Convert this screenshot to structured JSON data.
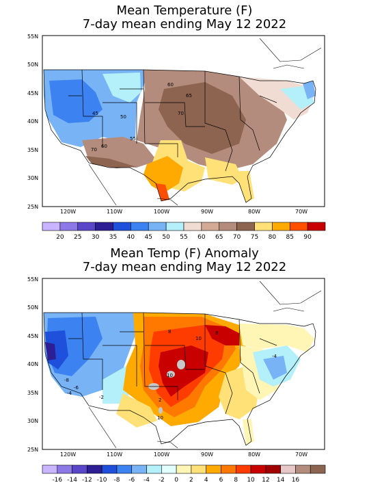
{
  "top_map": {
    "title_line1": "Mean Temperature (F)",
    "title_line2": "7-day mean ending May 12 2022",
    "lat_labels": [
      "55N",
      "50N",
      "45N",
      "40N",
      "35N",
      "30N",
      "25N"
    ],
    "lon_labels": [
      "120W",
      "110W",
      "100W",
      "90W",
      "80W",
      "70W"
    ],
    "contour_labels": [
      "45",
      "50",
      "55",
      "60",
      "65",
      "70",
      "60",
      "70"
    ],
    "colorbar_labels": [
      "20",
      "25",
      "30",
      "35",
      "40",
      "45",
      "50",
      "55",
      "60",
      "65",
      "70",
      "75",
      "80",
      "85",
      "90"
    ],
    "colorbar_colors": [
      "#c8b4ff",
      "#8c78e6",
      "#5a46c8",
      "#2d1e96",
      "#1e50dc",
      "#3c82f0",
      "#78b4f5",
      "#b4f0fa",
      "#f0dcd2",
      "#d2aa96",
      "#b48c7d",
      "#8c6450",
      "#ffe178",
      "#ffaa00",
      "#ff5000",
      "#c80000"
    ]
  },
  "bottom_map": {
    "title_line1": "Mean Temp (F) Anomaly",
    "title_line2": "7-day mean ending May 12 2022",
    "lat_labels": [
      "55N",
      "50N",
      "45N",
      "40N",
      "35N",
      "30N",
      "25N"
    ],
    "lon_labels": [
      "120W",
      "110W",
      "100W",
      "90W",
      "80W",
      "70W"
    ],
    "contour_labels": [
      "8",
      "10",
      "8",
      "10",
      "-8",
      "-6",
      "-4",
      "-2",
      "-4",
      "10",
      "2"
    ],
    "colorbar_labels": [
      "-16",
      "-14",
      "-12",
      "-10",
      "-8",
      "-6",
      "-4",
      "-2",
      "0",
      "2",
      "4",
      "6",
      "8",
      "10",
      "12",
      "14",
      "16"
    ],
    "colorbar_colors": [
      "#c8b4ff",
      "#8c78e6",
      "#5a46c8",
      "#2d1e96",
      "#1e50dc",
      "#3c82f0",
      "#78b4f5",
      "#b4f0fa",
      "#e1ffff",
      "#fff5b4",
      "#ffe178",
      "#ffaa00",
      "#ff7800",
      "#ff3c00",
      "#c80000",
      "#a00000",
      "#e6c8c8",
      "#b48c7d",
      "#8c6450"
    ]
  }
}
